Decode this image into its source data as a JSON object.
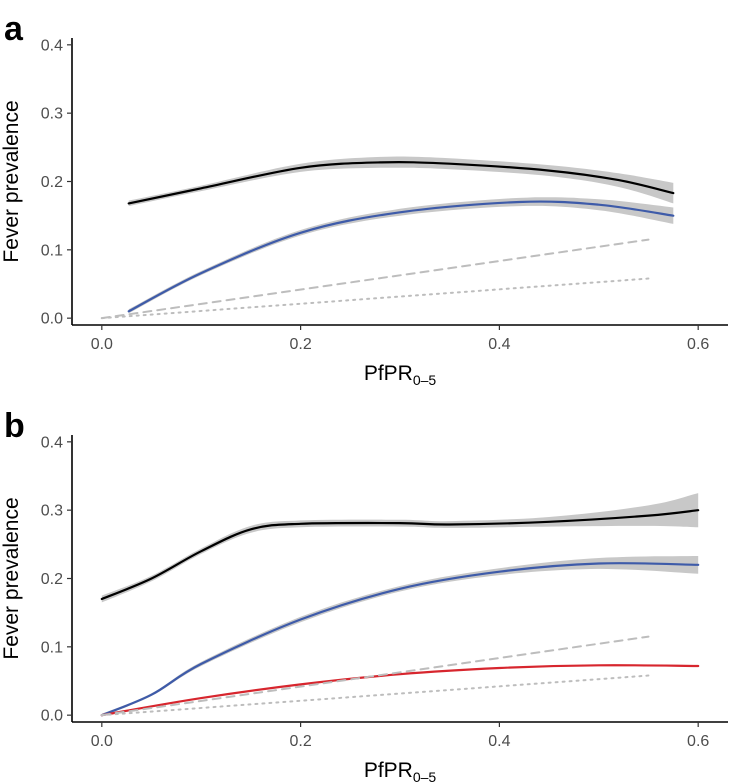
{
  "chart_data": [
    {
      "panel_label": "a",
      "type": "line",
      "xlabel_main": "PfPR",
      "xlabel_sub": "0–5",
      "ylabel": "Fever prevalence",
      "xlim": [
        -0.03,
        0.63
      ],
      "ylim": [
        -0.01,
        0.41
      ],
      "xticks": [
        "0.0",
        "0.2",
        "0.4",
        "0.6"
      ],
      "yticks": [
        "0.0",
        "0.1",
        "0.2",
        "0.3",
        "0.4"
      ],
      "grid": false,
      "legend": "none",
      "series": [
        {
          "color": "#000000",
          "style": "solid",
          "band_color": "#c8c8c8",
          "x": [
            0.027,
            0.1,
            0.2,
            0.28,
            0.35,
            0.45,
            0.52,
            0.575
          ],
          "y": [
            0.168,
            0.19,
            0.22,
            0.228,
            0.226,
            0.216,
            0.202,
            0.183
          ],
          "band_half_width": [
            0.004,
            0.004,
            0.006,
            0.008,
            0.008,
            0.008,
            0.01,
            0.015
          ]
        },
        {
          "color": "#3e5ba9",
          "style": "solid",
          "band_color": "#c8c8c8",
          "x": [
            0.027,
            0.1,
            0.2,
            0.3,
            0.42,
            0.5,
            0.575
          ],
          "y": [
            0.01,
            0.066,
            0.125,
            0.155,
            0.17,
            0.166,
            0.15
          ],
          "band_half_width": [
            0.003,
            0.003,
            0.004,
            0.005,
            0.006,
            0.008,
            0.012
          ]
        },
        {
          "color": "#bdbdbd",
          "style": "dashed",
          "x": [
            0.0,
            0.55
          ],
          "y": [
            0.0,
            0.115
          ]
        },
        {
          "color": "#bdbdbd",
          "style": "dotted",
          "x": [
            0.0,
            0.55
          ],
          "y": [
            0.0,
            0.058
          ]
        }
      ]
    },
    {
      "panel_label": "b",
      "type": "line",
      "xlabel_main": "PfPR",
      "xlabel_sub": "0–5",
      "ylabel": "Fever prevalence",
      "xlim": [
        -0.03,
        0.63
      ],
      "ylim": [
        -0.01,
        0.41
      ],
      "xticks": [
        "0.0",
        "0.2",
        "0.4",
        "0.6"
      ],
      "yticks": [
        "0.0",
        "0.1",
        "0.2",
        "0.3",
        "0.4"
      ],
      "grid": false,
      "legend": "none",
      "series": [
        {
          "color": "#000000",
          "style": "solid",
          "band_color": "#c8c8c8",
          "x": [
            0.0,
            0.05,
            0.1,
            0.15,
            0.2,
            0.3,
            0.35,
            0.45,
            0.55,
            0.6
          ],
          "y": [
            0.17,
            0.2,
            0.24,
            0.272,
            0.28,
            0.281,
            0.279,
            0.283,
            0.292,
            0.3
          ],
          "band_half_width": [
            0.005,
            0.004,
            0.004,
            0.005,
            0.005,
            0.005,
            0.005,
            0.007,
            0.015,
            0.025
          ]
        },
        {
          "color": "#3e5ba9",
          "style": "solid",
          "band_color": "#c8c8c8",
          "x": [
            0.0,
            0.05,
            0.1,
            0.2,
            0.3,
            0.4,
            0.5,
            0.6
          ],
          "y": [
            0.0,
            0.03,
            0.075,
            0.14,
            0.185,
            0.21,
            0.222,
            0.22
          ],
          "band_half_width": [
            0.002,
            0.002,
            0.003,
            0.004,
            0.004,
            0.005,
            0.008,
            0.013
          ]
        },
        {
          "color": "#d7262e",
          "style": "solid",
          "x": [
            0.0,
            0.1,
            0.2,
            0.3,
            0.4,
            0.5,
            0.6
          ],
          "y": [
            0.0,
            0.025,
            0.045,
            0.06,
            0.069,
            0.073,
            0.072
          ]
        },
        {
          "color": "#bdbdbd",
          "style": "dashed",
          "x": [
            0.0,
            0.55
          ],
          "y": [
            0.0,
            0.115
          ]
        },
        {
          "color": "#bdbdbd",
          "style": "dotted",
          "x": [
            0.0,
            0.55
          ],
          "y": [
            0.0,
            0.058
          ]
        }
      ]
    }
  ]
}
